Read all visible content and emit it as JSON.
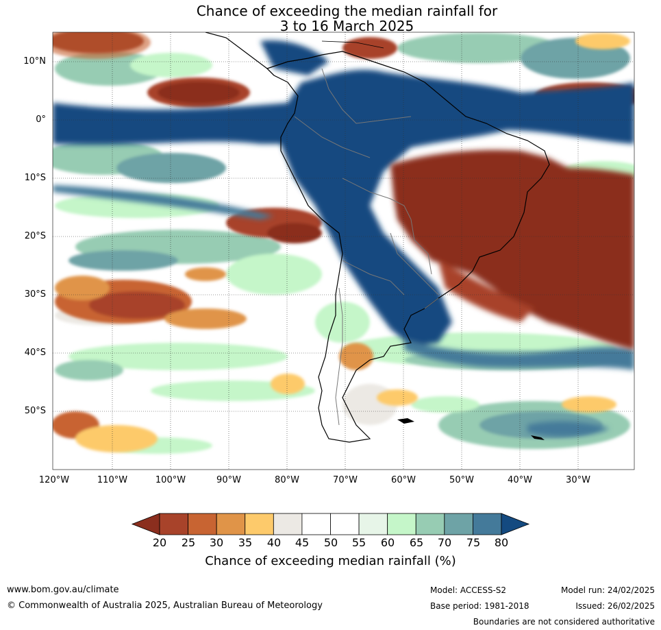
{
  "title": {
    "line1": "Chance of exceeding the median rainfall for",
    "line2": "3 to 16 March 2025"
  },
  "map": {
    "lat_labels": [
      "10°N",
      "0°",
      "10°S",
      "20°S",
      "30°S",
      "40°S",
      "50°S"
    ],
    "lon_labels": [
      "120°W",
      "110°W",
      "100°W",
      "90°W",
      "80°W",
      "70°W",
      "60°W",
      "50°W",
      "40°W",
      "30°W"
    ],
    "colors": {
      "wet": "#144a80",
      "dry": "#8b2e1e",
      "neutral": "#ffffff",
      "ocean_border": "#000000"
    }
  },
  "colorbar": {
    "ticks": [
      "20",
      "25",
      "30",
      "35",
      "40",
      "45",
      "50",
      "55",
      "60",
      "65",
      "70",
      "75",
      "80"
    ],
    "colors": [
      "#8b2e1e",
      "#a8432a",
      "#c86432",
      "#e09448",
      "#fdca6b",
      "#ece9e4",
      "#ffffff",
      "#ffffff",
      "#e7f5e8",
      "#c5f6c9",
      "#97ccb3",
      "#6ea3a6",
      "#447a9a",
      "#144a80"
    ],
    "label": "Chance of exceeding median rainfall (%)"
  },
  "footer": {
    "website": "www.bom.gov.au/climate",
    "copyright": "© Commonwealth of Australia 2025, Australian Bureau of Meteorology",
    "model": "Model: ACCESS-S2",
    "base_period": "Base period: 1981-2018",
    "model_run": "Model run: 24/02/2025",
    "issued": "Issued: 26/02/2025",
    "boundaries": "Boundaries are not considered authoritative"
  }
}
